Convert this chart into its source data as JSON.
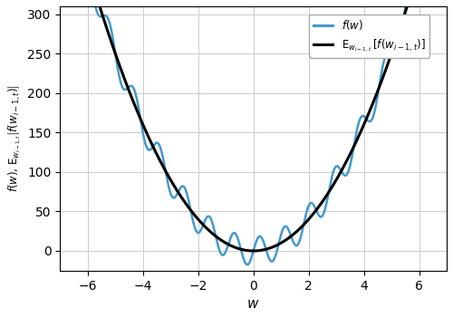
{
  "xlabel": "$w$",
  "xlim": [
    -7,
    7
  ],
  "ylim": [
    -25,
    310
  ],
  "yticks": [
    0,
    50,
    100,
    150,
    200,
    250,
    300
  ],
  "xticks": [
    -6,
    -4,
    -2,
    0,
    2,
    4,
    6
  ],
  "smooth_color": "#000000",
  "noisy_color": "#4499cc",
  "smooth_lw": 2.2,
  "noisy_lw": 1.8,
  "legend_labels": [
    "$f(w)$",
    "$\\mathrm{E}_{w_{i-1,t}}\\,[f(w_{i-1,t})]$"
  ],
  "legend_colors": [
    "#4499cc",
    "#000000"
  ],
  "legend_lw": [
    2.2,
    2.2
  ],
  "parabola_scale": 10.0,
  "noise_amplitude": 18.0,
  "noise_frequency": 2.2,
  "x_range_min": -6.5,
  "x_range_max": 6.5,
  "n_points": 2000
}
